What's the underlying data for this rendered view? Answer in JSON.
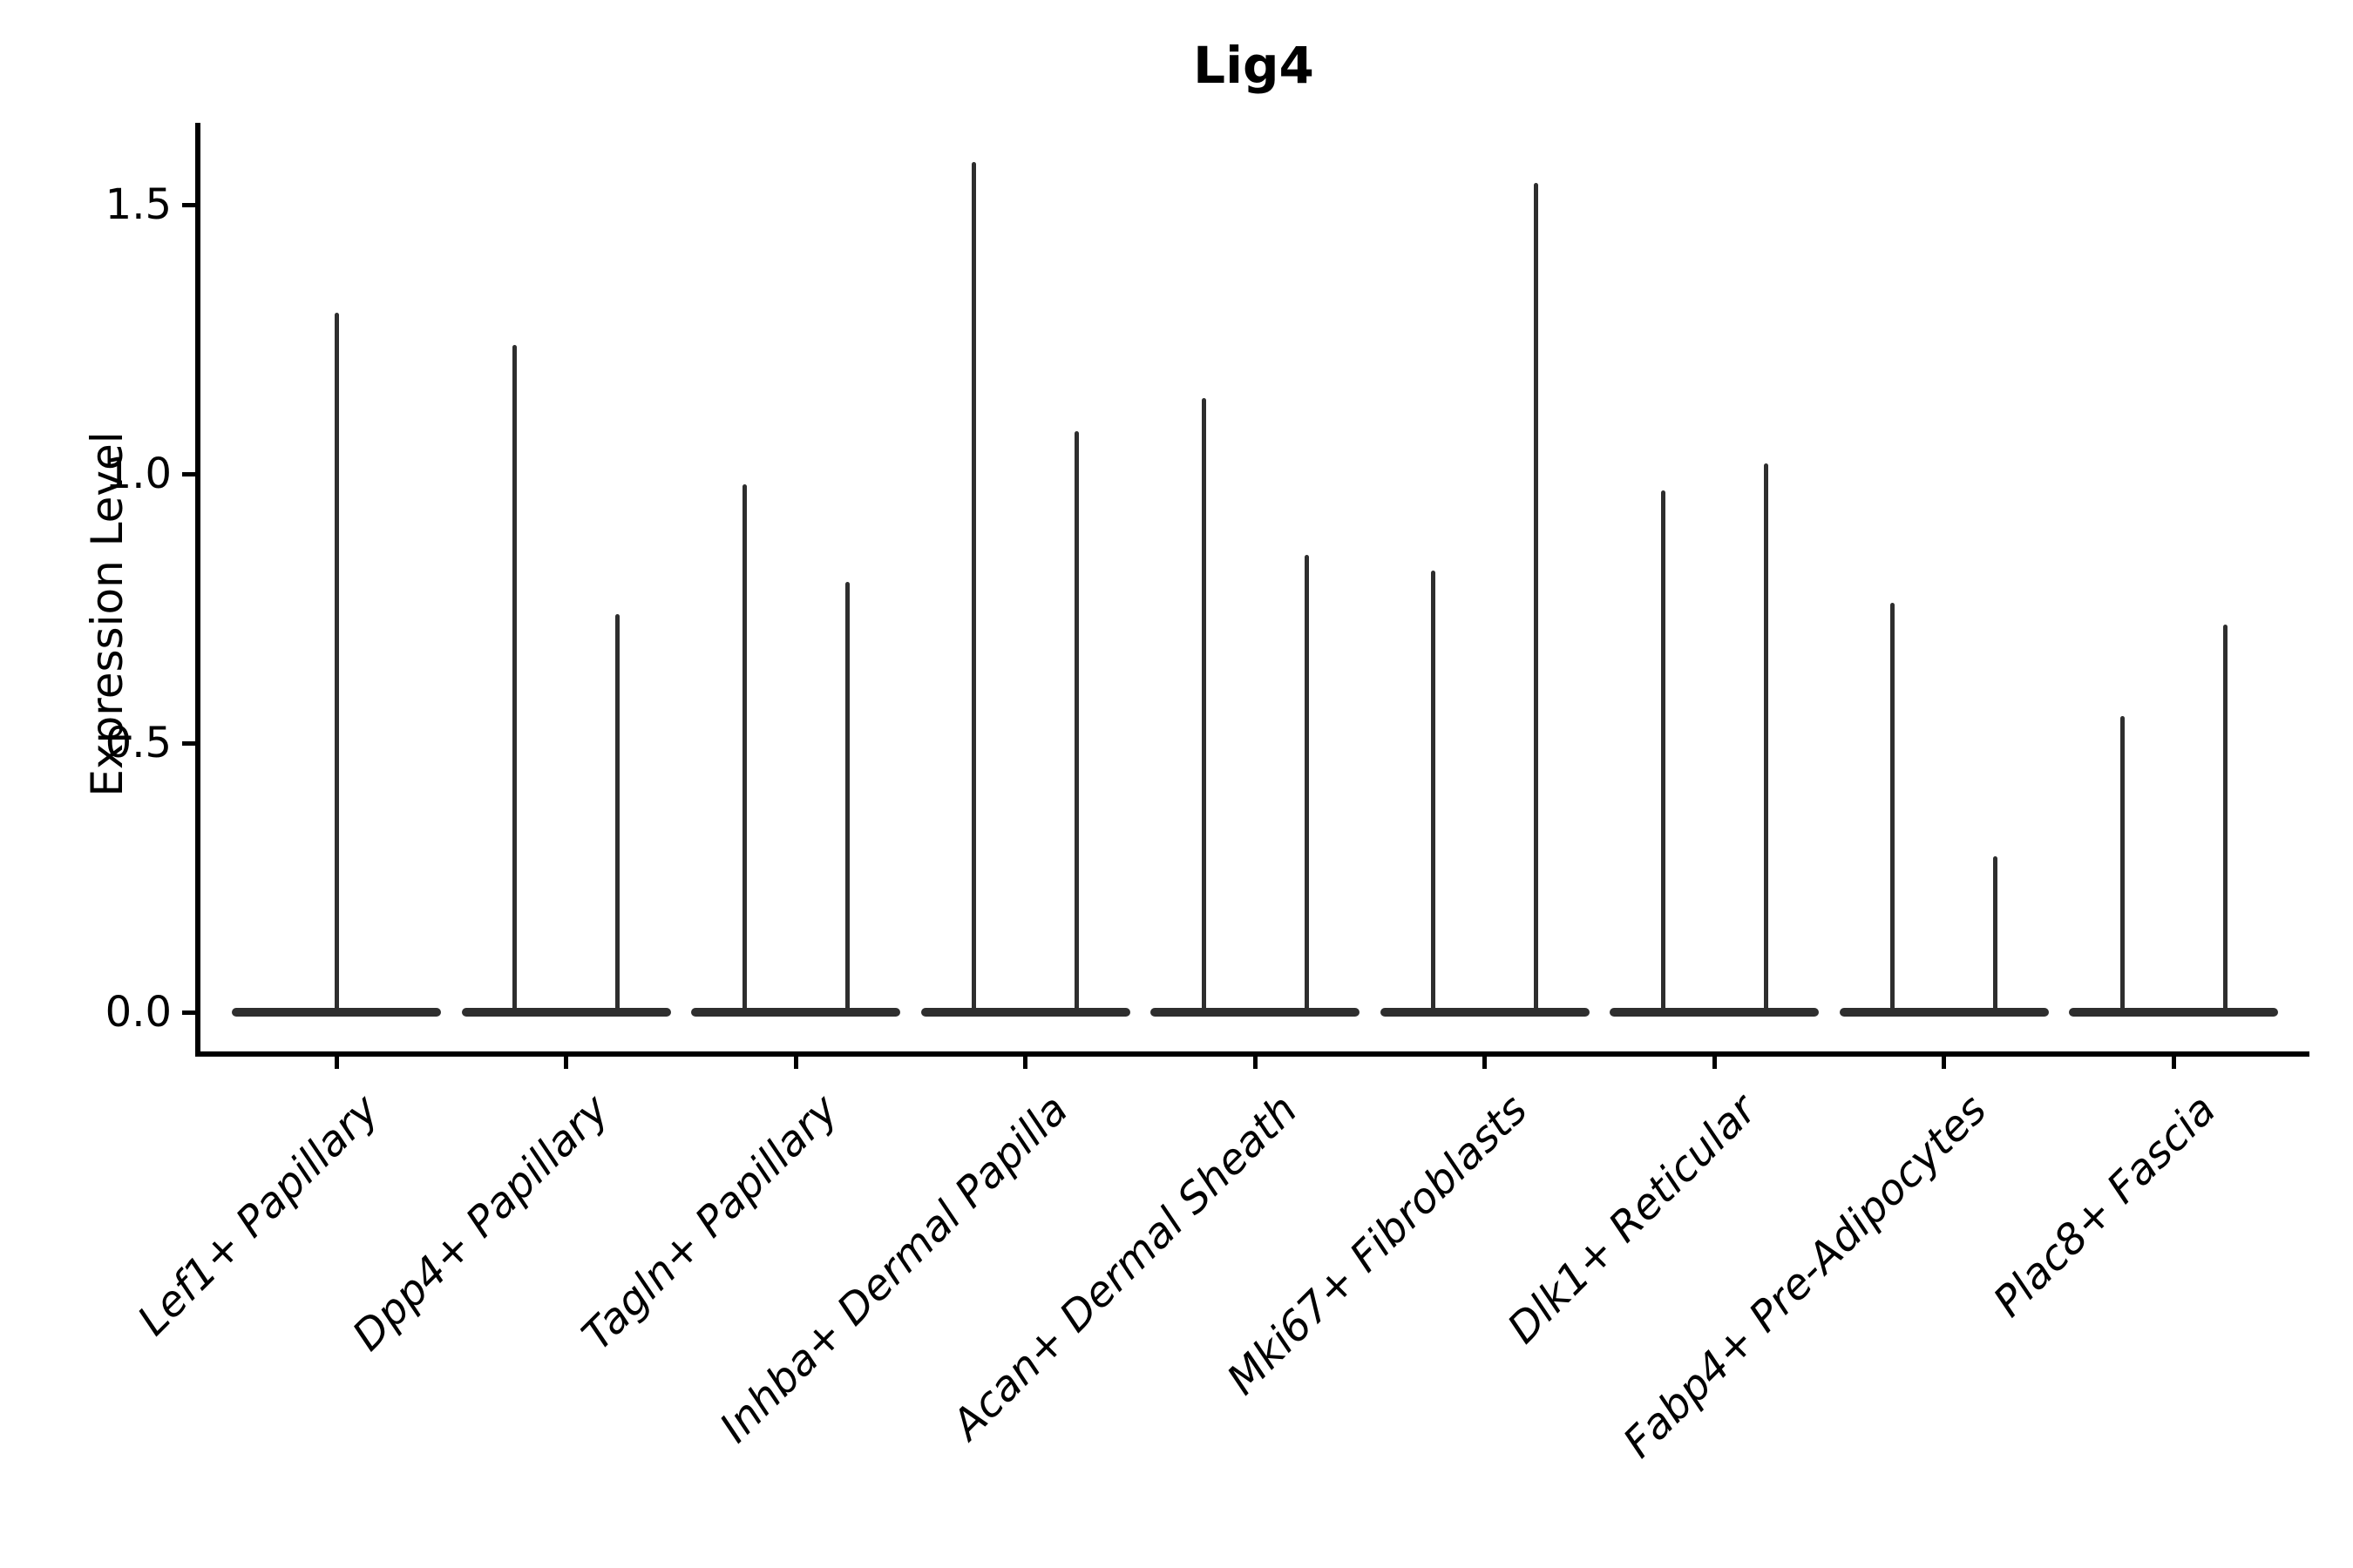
{
  "page": {
    "background": "#ffffff"
  },
  "chart_data": {
    "type": "violin",
    "title": "Lig4",
    "ylabel": "Expression Level",
    "xlabel": "",
    "yticks": [
      0.0,
      0.5,
      1.0,
      1.5
    ],
    "ytick_labels": [
      "0.0",
      "0.5",
      "1.0",
      "1.5"
    ],
    "ylim": [
      -0.08,
      1.65
    ],
    "grid": false,
    "legend_position": "none",
    "x_tick_label_rotation_deg": 45,
    "x_tick_label_style": "italic",
    "categories": [
      "Lef1+ Papillary",
      "Dpp4+ Papillary",
      "Tagln+ Papillary",
      "Inhba+ Dermal Papilla",
      "Acan+ Dermal Sheath",
      "Mki67+ Fibroblasts",
      "Dlk1+ Reticular",
      "Fabp4+ Pre-Adipocytes",
      "Plac8+ Fascia"
    ],
    "series": [
      {
        "category": "Lef1+ Papillary",
        "violin_max_expression": [
          1.3
        ]
      },
      {
        "category": "Dpp4+ Papillary",
        "violin_max_expression": [
          1.24,
          0.74
        ]
      },
      {
        "category": "Tagln+ Papillary",
        "violin_max_expression": [
          0.98,
          0.8
        ]
      },
      {
        "category": "Inhba+ Dermal Papilla",
        "violin_max_expression": [
          1.58,
          1.08
        ]
      },
      {
        "category": "Acan+ Dermal Sheath",
        "violin_max_expression": [
          1.14,
          0.85
        ]
      },
      {
        "category": "Mki67+ Fibroblasts",
        "violin_max_expression": [
          0.82,
          1.54
        ]
      },
      {
        "category": "Dlk1+ Reticular",
        "violin_max_expression": [
          0.97,
          1.02
        ]
      },
      {
        "category": "Fabp4+ Pre-Adipocytes",
        "violin_max_expression": [
          0.76,
          0.29
        ]
      },
      {
        "category": "Plac8+ Fascia",
        "violin_max_expression": [
          0.55,
          0.72
        ]
      }
    ],
    "violin_shape_note": "Each violin's mass is concentrated at 0: a wide flat base bar at y=0 plus thin vertical spike(s) rising to the maximum expression value.",
    "colors": {
      "violin": "#2e2e2e",
      "axis": "#000000",
      "text": "#000000",
      "background": "#ffffff"
    }
  }
}
